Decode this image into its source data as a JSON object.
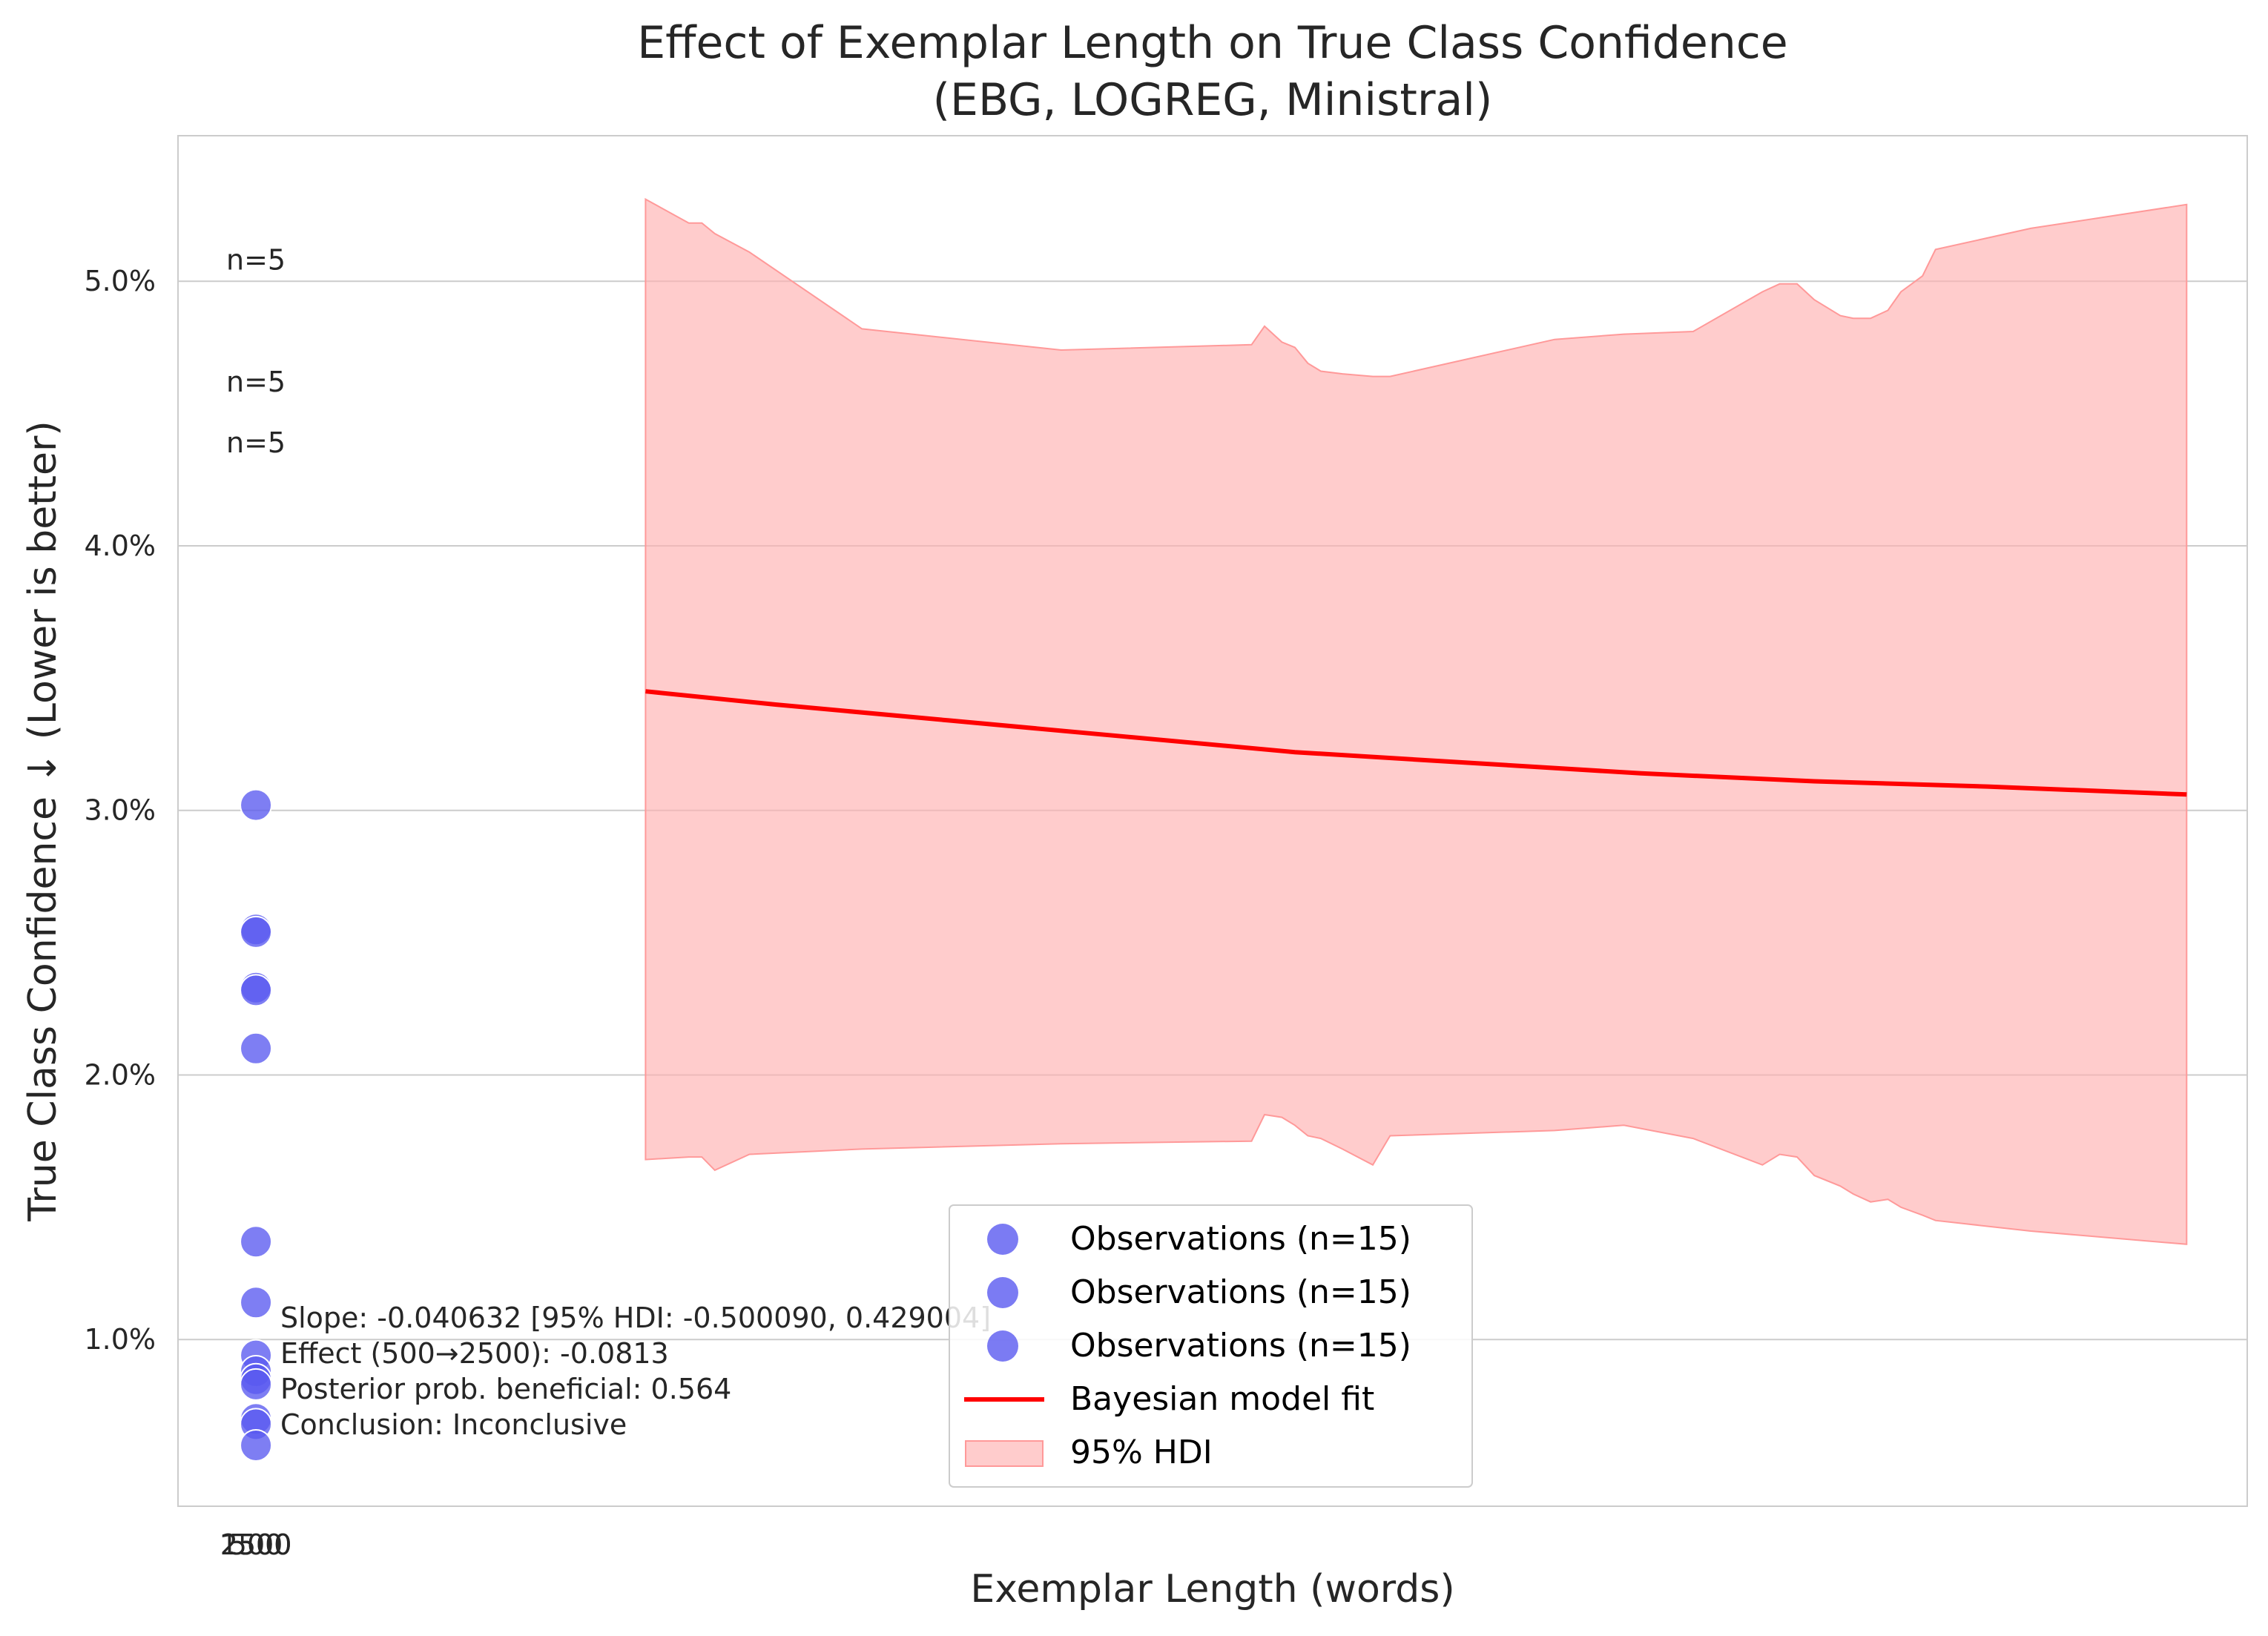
{
  "chart_data": {
    "type": "scatter",
    "title": "Effect of Exemplar Length on True Class Confidence",
    "subtitle": "(EBG, LOGREG, Ministral)",
    "xlabel": "Exemplar Length (words)",
    "ylabel": "True Class Confidence ↓ (Lower is better)",
    "x_tick_labels": [
      "2500",
      "1500",
      "500"
    ],
    "y_ticks": [
      1.0,
      2.0,
      3.0,
      4.0,
      5.0
    ],
    "y_tick_labels": [
      "1.0%",
      "2.0%",
      "3.0%",
      "4.0%",
      "5.0%"
    ],
    "ylim": [
      0.37,
      5.55
    ],
    "xlim": [
      -90,
      2300
    ],
    "grid": "y",
    "series": [
      {
        "name": "Observations (n=15)",
        "kind": "points",
        "color": "#5a5af0",
        "points": [
          {
            "x": 0,
            "y": 3.02
          },
          {
            "x": 0,
            "y": 2.55
          },
          {
            "x": 0,
            "y": 2.54
          },
          {
            "x": 0,
            "y": 2.33
          },
          {
            "x": 0,
            "y": 2.32
          },
          {
            "x": 0,
            "y": 2.1
          },
          {
            "x": 0,
            "y": 1.37
          },
          {
            "x": 0,
            "y": 1.14
          },
          {
            "x": 0,
            "y": 0.94
          },
          {
            "x": 0,
            "y": 0.88
          },
          {
            "x": 0,
            "y": 0.85
          },
          {
            "x": 0,
            "y": 0.83
          },
          {
            "x": 0,
            "y": 0.7
          },
          {
            "x": 0,
            "y": 0.68
          },
          {
            "x": 0,
            "y": 0.6
          }
        ]
      },
      {
        "name": "Bayesian model fit",
        "kind": "line",
        "color": "#ff0000",
        "x": [
          450,
          600,
          800,
          1000,
          1200,
          1400,
          1600,
          1800,
          2000,
          2230
        ],
        "y": [
          3.45,
          3.4,
          3.34,
          3.28,
          3.22,
          3.18,
          3.14,
          3.11,
          3.09,
          3.06
        ]
      },
      {
        "name": "95% HDI",
        "kind": "band",
        "color": "#ffb0b0",
        "x": [
          450,
          500,
          515,
          530,
          570,
          700,
          930,
          1150,
          1165,
          1185,
          1200,
          1215,
          1230,
          1255,
          1290,
          1310,
          1500,
          1580,
          1660,
          1740,
          1760,
          1780,
          1800,
          1830,
          1845,
          1865,
          1885,
          1900,
          1925,
          1940,
          2050,
          2230
        ],
        "upper": [
          5.31,
          5.22,
          5.22,
          5.18,
          5.11,
          4.82,
          4.74,
          4.76,
          4.83,
          4.77,
          4.75,
          4.69,
          4.66,
          4.65,
          4.64,
          4.64,
          4.78,
          4.8,
          4.81,
          4.96,
          4.99,
          4.99,
          4.93,
          4.87,
          4.86,
          4.86,
          4.89,
          4.96,
          5.02,
          5.12,
          5.2,
          5.29
        ],
        "lower": [
          1.68,
          1.69,
          1.69,
          1.64,
          1.7,
          1.72,
          1.74,
          1.75,
          1.85,
          1.84,
          1.81,
          1.77,
          1.76,
          1.72,
          1.66,
          1.77,
          1.79,
          1.81,
          1.76,
          1.66,
          1.7,
          1.69,
          1.62,
          1.58,
          1.55,
          1.52,
          1.53,
          1.5,
          1.47,
          1.45,
          1.41,
          1.36
        ]
      }
    ],
    "count_labels": [
      {
        "text": "n=5",
        "x": 0,
        "y": 5.08
      },
      {
        "text": "n=5",
        "x": 0,
        "y": 4.62
      },
      {
        "text": "n=5",
        "x": 0,
        "y": 4.39
      }
    ],
    "annotation": [
      "Slope: -0.040632 [95% HDI: -0.500090, 0.429004]",
      "Effect (500→2500): -0.0813",
      "Posterior prob. beneficial: 0.564",
      "Conclusion: Inconclusive"
    ],
    "legend": {
      "position": "lower center",
      "entries": [
        {
          "label": "Observations (n=15)",
          "marker": "dot",
          "color": "#5a5af0"
        },
        {
          "label": "Observations (n=15)",
          "marker": "dot",
          "color": "#5a5af0"
        },
        {
          "label": "Observations (n=15)",
          "marker": "dot",
          "color": "#5a5af0"
        },
        {
          "label": "Bayesian model fit",
          "marker": "line",
          "color": "#ff0000"
        },
        {
          "label": "95% HDI",
          "marker": "patch",
          "color": "#ffb0b0"
        }
      ]
    }
  }
}
